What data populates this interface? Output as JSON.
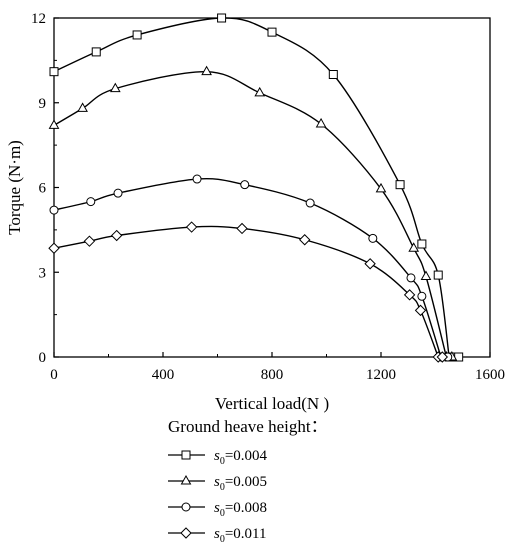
{
  "chart_data": {
    "type": "scatter",
    "title": "",
    "xlabel": "Vertical load(N )",
    "ylabel": "Torque (N·m)",
    "xlim": [
      0,
      1600
    ],
    "ylim": [
      0,
      12
    ],
    "xticks": [
      0,
      400,
      800,
      1200,
      1600
    ],
    "yticks": [
      0,
      3,
      6,
      9,
      12
    ],
    "grid": false,
    "legend": {
      "title": "Ground heave height：",
      "placement": "bottom-below-plot"
    },
    "fit_curves": true,
    "series": [
      {
        "name": "s0=0.004",
        "label_main": "s",
        "label_sub": "0",
        "label_rest": "=0.004",
        "marker": "square",
        "x": [
          0,
          155,
          305,
          615,
          800,
          1025,
          1270,
          1350,
          1410,
          1450,
          1475,
          1485
        ],
        "y": [
          10.1,
          10.8,
          11.4,
          12.0,
          11.5,
          10.0,
          6.1,
          4.0,
          2.9,
          0,
          0,
          0
        ]
      },
      {
        "name": "s0=0.005",
        "label_main": "s",
        "label_sub": "0",
        "label_rest": "=0.005",
        "marker": "triangle",
        "x": [
          0,
          105,
          225,
          560,
          755,
          980,
          1200,
          1320,
          1365,
          1440,
          1460
        ],
        "y": [
          8.2,
          8.8,
          9.5,
          10.1,
          9.35,
          8.25,
          5.95,
          3.85,
          2.85,
          0,
          0
        ]
      },
      {
        "name": "s0=0.008",
        "label_main": "s",
        "label_sub": "0",
        "label_rest": "=0.008",
        "marker": "circle",
        "x": [
          0,
          135,
          235,
          525,
          700,
          940,
          1170,
          1310,
          1350,
          1420,
          1445
        ],
        "y": [
          5.2,
          5.5,
          5.8,
          6.3,
          6.1,
          5.45,
          4.2,
          2.8,
          2.15,
          0,
          0
        ]
      },
      {
        "name": "s0=0.011",
        "label_main": "s",
        "label_sub": "0",
        "label_rest": "=0.011",
        "marker": "diamond",
        "x": [
          0,
          130,
          230,
          505,
          690,
          920,
          1160,
          1305,
          1345,
          1410,
          1425
        ],
        "y": [
          3.85,
          4.1,
          4.3,
          4.6,
          4.55,
          4.15,
          3.3,
          2.2,
          1.65,
          0,
          0
        ]
      }
    ]
  }
}
